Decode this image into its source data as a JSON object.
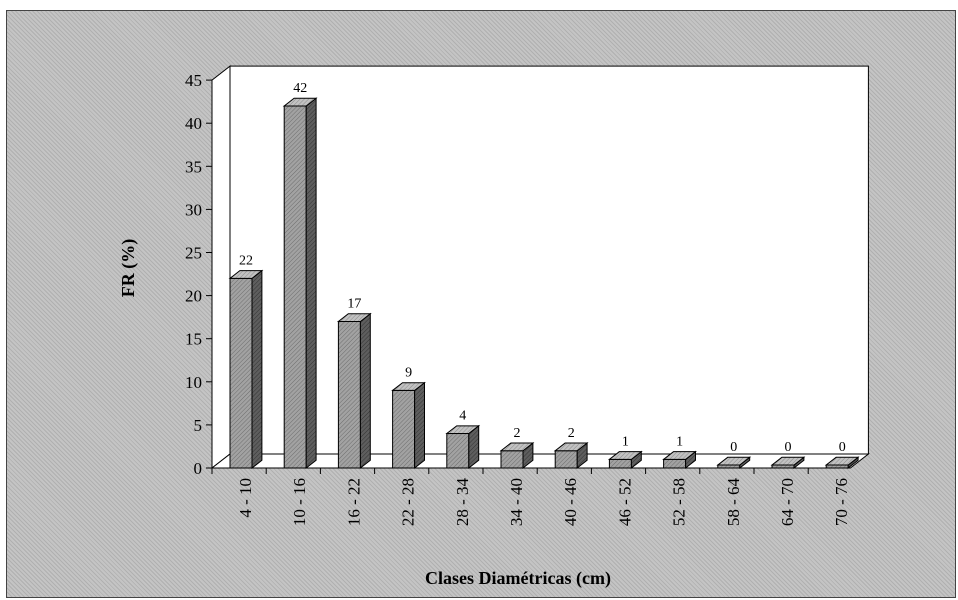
{
  "chart_data": {
    "type": "bar",
    "categories": [
      "4 - 10",
      "10 - 16",
      "16 - 22",
      "22 - 28",
      "28 - 34",
      "34 - 40",
      "40 - 46",
      "46 - 52",
      "52 - 58",
      "58 - 64",
      "64 - 70",
      "70 - 76"
    ],
    "values": [
      22,
      42,
      17,
      9,
      4,
      2,
      2,
      1,
      1,
      0,
      0,
      0
    ],
    "xlabel": "Clases Diamétricas (cm)",
    "ylabel": "FR (%)",
    "ylim": [
      0,
      45
    ],
    "yticks": [
      "0",
      "5",
      "10",
      "15",
      "20",
      "25",
      "30",
      "35",
      "40",
      "45"
    ],
    "grid": false,
    "style": "3d",
    "colors": {
      "bar_front": "#9a9a9a",
      "bar_side": "#5c5c5c",
      "bar_top": "#b8b8b8",
      "plot_area": "#ffffff"
    }
  }
}
